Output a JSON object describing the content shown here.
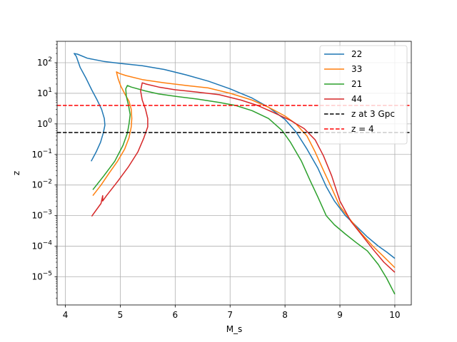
{
  "chart_data": {
    "type": "line",
    "title": "",
    "xlabel": "M_s",
    "ylabel": "z",
    "xlim": [
      3.85,
      10.3
    ],
    "ylim": [
      1.2e-06,
      500
    ],
    "yscale": "log",
    "grid": true,
    "legend_position": "top-right",
    "x_ticks": [
      4,
      5,
      6,
      7,
      8,
      9,
      10
    ],
    "y_ticks": [
      {
        "value": 1e-05,
        "mantissa": "10",
        "exp": "−5"
      },
      {
        "value": 0.0001,
        "mantissa": "10",
        "exp": "−4"
      },
      {
        "value": 0.001,
        "mantissa": "10",
        "exp": "−3"
      },
      {
        "value": 0.01,
        "mantissa": "10",
        "exp": "−2"
      },
      {
        "value": 0.1,
        "mantissa": "10",
        "exp": "−1"
      },
      {
        "value": 1,
        "mantissa": "10",
        "exp": "0"
      },
      {
        "value": 10,
        "mantissa": "10",
        "exp": "1"
      },
      {
        "value": 100,
        "mantissa": "10",
        "exp": "2"
      }
    ],
    "series": [
      {
        "name": "22",
        "color": "#1f77b4",
        "points": [
          [
            4.47,
            0.06
          ],
          [
            4.56,
            0.12
          ],
          [
            4.64,
            0.25
          ],
          [
            4.69,
            0.5
          ],
          [
            4.72,
            0.9
          ],
          [
            4.71,
            1.5
          ],
          [
            4.66,
            3
          ],
          [
            4.58,
            6
          ],
          [
            4.48,
            13
          ],
          [
            4.38,
            30
          ],
          [
            4.27,
            70
          ],
          [
            4.2,
            160
          ],
          [
            4.16,
            200
          ],
          [
            4.22,
            190
          ],
          [
            4.4,
            140
          ],
          [
            4.7,
            110
          ],
          [
            5.0,
            95
          ],
          [
            5.4,
            80
          ],
          [
            5.8,
            60
          ],
          [
            6.2,
            40
          ],
          [
            6.6,
            25
          ],
          [
            7.0,
            14
          ],
          [
            7.4,
            7
          ],
          [
            7.7,
            3.5
          ],
          [
            8.0,
            1.4
          ],
          [
            8.2,
            0.55
          ],
          [
            8.4,
            0.15
          ],
          [
            8.6,
            0.035
          ],
          [
            8.75,
            0.009
          ],
          [
            8.9,
            0.003
          ],
          [
            9.1,
            0.001
          ],
          [
            9.3,
            0.00045
          ],
          [
            9.5,
            0.0002
          ],
          [
            9.7,
            0.0001
          ],
          [
            9.85,
            6.5e-05
          ],
          [
            10.0,
            4e-05
          ]
        ]
      },
      {
        "name": "33",
        "color": "#ff7f0e",
        "points": [
          [
            4.5,
            0.0045
          ],
          [
            4.65,
            0.01
          ],
          [
            4.8,
            0.025
          ],
          [
            4.95,
            0.06
          ],
          [
            5.08,
            0.15
          ],
          [
            5.16,
            0.35
          ],
          [
            5.2,
            0.8
          ],
          [
            5.21,
            1.5
          ],
          [
            5.2,
            3
          ],
          [
            5.16,
            5.5
          ],
          [
            5.09,
            9
          ],
          [
            5.01,
            17
          ],
          [
            4.96,
            30
          ],
          [
            4.93,
            50
          ],
          [
            4.98,
            45
          ],
          [
            5.1,
            38
          ],
          [
            5.4,
            28
          ],
          [
            5.8,
            22
          ],
          [
            6.2,
            18
          ],
          [
            6.6,
            15
          ],
          [
            7.0,
            10
          ],
          [
            7.4,
            6
          ],
          [
            7.7,
            3.5
          ],
          [
            8.0,
            1.8
          ],
          [
            8.2,
            1.0
          ],
          [
            8.4,
            0.4
          ],
          [
            8.55,
            0.12
          ],
          [
            8.7,
            0.03
          ],
          [
            8.85,
            0.008
          ],
          [
            9.0,
            0.002
          ],
          [
            9.2,
            0.0007
          ],
          [
            9.4,
            0.00025
          ],
          [
            9.6,
            0.0001
          ],
          [
            9.8,
            4.5e-05
          ],
          [
            10.0,
            2e-05
          ]
        ]
      },
      {
        "name": "21",
        "color": "#2ca02c",
        "points": [
          [
            4.5,
            0.007
          ],
          [
            4.7,
            0.02
          ],
          [
            4.9,
            0.06
          ],
          [
            5.05,
            0.2
          ],
          [
            5.13,
            0.5
          ],
          [
            5.16,
            1.0
          ],
          [
            5.18,
            2
          ],
          [
            5.15,
            4
          ],
          [
            5.11,
            8
          ],
          [
            5.1,
            14
          ],
          [
            5.13,
            18
          ],
          [
            5.2,
            16
          ],
          [
            5.45,
            12
          ],
          [
            5.7,
            9.5
          ],
          [
            6.0,
            8
          ],
          [
            6.4,
            6.5
          ],
          [
            6.8,
            5
          ],
          [
            7.1,
            4
          ],
          [
            7.4,
            2.7
          ],
          [
            7.7,
            1.5
          ],
          [
            7.95,
            0.6
          ],
          [
            8.1,
            0.25
          ],
          [
            8.3,
            0.06
          ],
          [
            8.45,
            0.015
          ],
          [
            8.6,
            0.004
          ],
          [
            8.75,
            0.001
          ],
          [
            8.9,
            0.0005
          ],
          [
            9.1,
            0.00025
          ],
          [
            9.3,
            0.00013
          ],
          [
            9.5,
            7e-05
          ],
          [
            9.7,
            2.5e-05
          ],
          [
            9.85,
            9e-06
          ],
          [
            10.0,
            2.7e-06
          ]
        ]
      },
      {
        "name": "44",
        "color": "#d62728",
        "points": [
          [
            4.48,
            0.00095
          ],
          [
            4.65,
            0.0025
          ],
          [
            4.68,
            0.0045
          ],
          [
            4.68,
            0.003
          ],
          [
            4.75,
            0.0045
          ],
          [
            4.95,
            0.013
          ],
          [
            5.15,
            0.04
          ],
          [
            5.32,
            0.12
          ],
          [
            5.43,
            0.35
          ],
          [
            5.5,
            0.8
          ],
          [
            5.5,
            1.5
          ],
          [
            5.46,
            3
          ],
          [
            5.4,
            6
          ],
          [
            5.37,
            12
          ],
          [
            5.4,
            22
          ],
          [
            5.47,
            20
          ],
          [
            5.7,
            16
          ],
          [
            6.0,
            13
          ],
          [
            6.4,
            11
          ],
          [
            6.8,
            9
          ],
          [
            7.2,
            6
          ],
          [
            7.5,
            4
          ],
          [
            7.8,
            2.3
          ],
          [
            8.1,
            1.3
          ],
          [
            8.35,
            0.7
          ],
          [
            8.55,
            0.3
          ],
          [
            8.7,
            0.09
          ],
          [
            8.85,
            0.02
          ],
          [
            9.0,
            0.003
          ],
          [
            9.2,
            0.00065
          ],
          [
            9.4,
            0.00023
          ],
          [
            9.6,
            8e-05
          ],
          [
            9.8,
            3e-05
          ],
          [
            10.0,
            1.4e-05
          ]
        ]
      },
      {
        "name": "z at 3 Gpc",
        "color": "#000000",
        "dashed": true,
        "constant_y": 0.52
      },
      {
        "name": "z = 4",
        "color": "#ff0000",
        "dashed": true,
        "constant_y": 4
      }
    ]
  }
}
